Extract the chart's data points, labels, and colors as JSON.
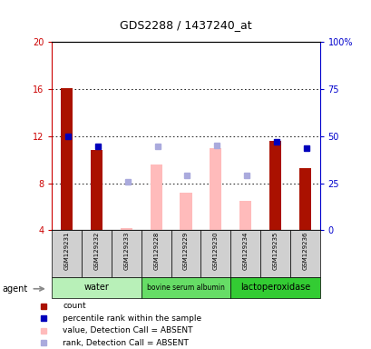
{
  "title": "GDS2288 / 1437240_at",
  "samples": [
    "GSM129231",
    "GSM129232",
    "GSM129233",
    "GSM129228",
    "GSM129229",
    "GSM129230",
    "GSM129234",
    "GSM129235",
    "GSM129236"
  ],
  "group_defs": [
    {
      "label": "water",
      "start": 0,
      "end": 2,
      "color": "#b8f0b8"
    },
    {
      "label": "bovine serum albumin",
      "start": 3,
      "end": 5,
      "color": "#66dd66"
    },
    {
      "label": "lactoperoxidase",
      "start": 6,
      "end": 8,
      "color": "#33cc33"
    }
  ],
  "ylim_left": [
    4,
    20
  ],
  "ylim_right": [
    0,
    100
  ],
  "yticks_left": [
    4,
    8,
    12,
    16,
    20
  ],
  "yticks_right": [
    0,
    25,
    50,
    75,
    100
  ],
  "ytick_labels_right": [
    "0",
    "25",
    "50",
    "75",
    "100%"
  ],
  "bar_bottom": 4,
  "red_bars": {
    "indices": [
      0,
      1,
      7,
      8
    ],
    "values": [
      16.1,
      10.8,
      11.6,
      9.3
    ]
  },
  "blue_squares": {
    "indices": [
      0,
      1,
      7,
      8
    ],
    "values": [
      12.0,
      11.1,
      11.5,
      11.0
    ]
  },
  "pink_bars": {
    "indices": [
      2,
      3,
      4,
      5,
      6
    ],
    "values": [
      4.2,
      9.6,
      7.2,
      11.0,
      6.5
    ]
  },
  "light_blue_squares": {
    "indices": [
      2,
      3,
      4,
      5,
      6
    ],
    "values": [
      8.1,
      11.1,
      8.7,
      11.2,
      8.7
    ]
  },
  "colors": {
    "red_bar": "#aa1100",
    "blue_sq": "#0000bb",
    "pink_bar": "#ffbbbb",
    "light_blue_sq": "#aaaadd",
    "left_axis": "#cc0000",
    "right_axis": "#0000cc",
    "sample_bg": "#d0d0d0",
    "grid_line": "#000000"
  },
  "legend_items": [
    {
      "color": "#aa1100",
      "label": "count"
    },
    {
      "color": "#0000bb",
      "label": "percentile rank within the sample"
    },
    {
      "color": "#ffbbbb",
      "label": "value, Detection Call = ABSENT"
    },
    {
      "color": "#aaaadd",
      "label": "rank, Detection Call = ABSENT"
    }
  ],
  "bar_width": 0.4
}
